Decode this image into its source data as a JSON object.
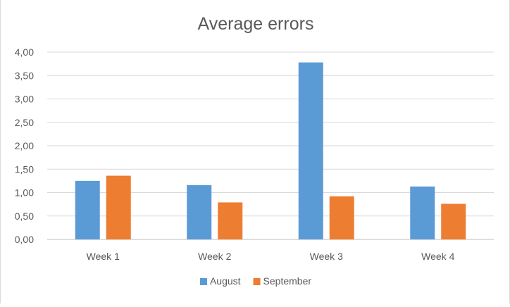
{
  "chart_data": {
    "type": "bar",
    "title": "Average errors",
    "xlabel": "",
    "ylabel": "",
    "categories": [
      "Week 1",
      "Week 2",
      "Week 3",
      "Week 4"
    ],
    "series": [
      {
        "name": "August",
        "values": [
          1.25,
          1.16,
          3.78,
          1.13
        ],
        "color": "#5b9bd5"
      },
      {
        "name": "September",
        "values": [
          1.36,
          0.79,
          0.92,
          0.76
        ],
        "color": "#ed7d31"
      }
    ],
    "ylim": [
      0,
      4
    ],
    "ytick_step": 0.5,
    "ytick_labels": [
      "0,00",
      "0,50",
      "1,00",
      "1,50",
      "2,00",
      "2,50",
      "3,00",
      "3,50",
      "4,00"
    ],
    "grid": true,
    "legend_position": "bottom"
  }
}
